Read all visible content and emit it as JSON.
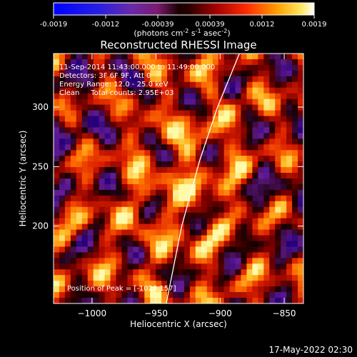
{
  "colorbar": {
    "ticks": [
      "-0.0019",
      "-0.0012",
      "-0.00039",
      "0.00039",
      "0.0012",
      "0.0019"
    ],
    "units_prefix": "(photons cm",
    "units_sup1": "-2",
    "units_mid1": " s",
    "units_sup2": "-1",
    "units_mid2": " asec",
    "units_sup3": "-2",
    "units_suffix": ")",
    "range": [
      -0.0019,
      0.0019
    ]
  },
  "chart_data": {
    "type": "heatmap",
    "title": "Reconstructed RHESSI Image",
    "xlabel": "Heliocentric X (arcsec)",
    "ylabel": "Heliocentric Y (arcsec)",
    "xlim": [
      -1030,
      -835
    ],
    "ylim": [
      135,
      345
    ],
    "xticks": [
      {
        "value": -1000,
        "label": "−1000"
      },
      {
        "value": -950,
        "label": "−950"
      },
      {
        "value": -900,
        "label": "−900"
      },
      {
        "value": -850,
        "label": "−850"
      }
    ],
    "yticks": [
      {
        "value": 200,
        "label": "200"
      },
      {
        "value": 250,
        "label": "250"
      },
      {
        "value": 300,
        "label": "300"
      }
    ],
    "limb_curve": [
      {
        "x": -942,
        "y": 135
      },
      {
        "x": -930,
        "y": 200
      },
      {
        "x": -916,
        "y": 255
      },
      {
        "x": -902,
        "y": 300
      },
      {
        "x": -885,
        "y": 345
      }
    ],
    "annotations": [
      "11-Sep-2014 11:43:00.000 to 11:49:00.000",
      "Detectors: 3F 6F 9F, Att 0",
      "Energy Range: 12.0 - 25.0 keV",
      "Clean     Total counts: 2.95E+03"
    ],
    "peak_label": "Position of Peak = [-1029,157]"
  },
  "footer": {
    "timestamp": "17-May-2022 02:30"
  }
}
